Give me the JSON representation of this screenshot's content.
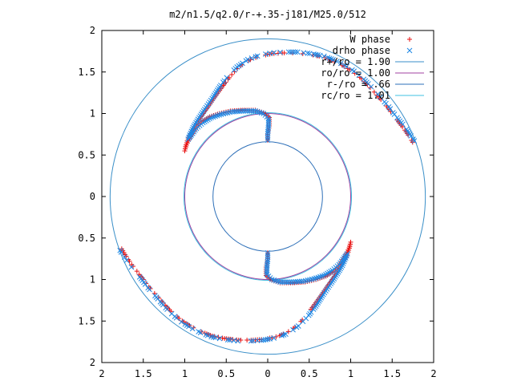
{
  "chart_data": {
    "type": "scatter",
    "title": "m2/n1.5/q2.0/r-+.35-j181/M25.0/512",
    "xlim": [
      -2,
      2
    ],
    "ylim": [
      -2,
      2
    ],
    "xticks": [
      {
        "value": -2,
        "label": "2"
      },
      {
        "value": -1.5,
        "label": "1.5"
      },
      {
        "value": -1,
        "label": "1"
      },
      {
        "value": -0.5,
        "label": "0.5"
      },
      {
        "value": 0,
        "label": "0"
      },
      {
        "value": 0.5,
        "label": "0.5"
      },
      {
        "value": 1,
        "label": "1"
      },
      {
        "value": 1.5,
        "label": "1.5"
      },
      {
        "value": 2,
        "label": "2"
      }
    ],
    "yticks": [
      {
        "value": 2,
        "label": "2"
      },
      {
        "value": 1.5,
        "label": "1.5"
      },
      {
        "value": 1,
        "label": "1"
      },
      {
        "value": 0.5,
        "label": "0.5"
      },
      {
        "value": 0,
        "label": "0"
      },
      {
        "value": -0.5,
        "label": "0.5"
      },
      {
        "value": -1,
        "label": "1"
      },
      {
        "value": -1.5,
        "label": "1.5"
      },
      {
        "value": -2,
        "label": "2"
      }
    ],
    "grid": false,
    "legend_position": "top-right",
    "circles": [
      {
        "name": "r+/ro = 1.90",
        "radius": 1.9,
        "color": "#3a8fc8"
      },
      {
        "name": "ro/ro = 1.00",
        "radius": 1.0,
        "color": "#a040a0"
      },
      {
        "name": "r-/ro = .66",
        "radius": 0.66,
        "color": "#2d6fb8"
      },
      {
        "name": "rc/ro = 1.01",
        "radius": 1.01,
        "color": "#40c0e0"
      }
    ],
    "series": [
      {
        "name": "W phase",
        "marker": "+",
        "color": "#e81010",
        "arm1": [
          [
            1.76,
            0.63
          ],
          [
            1.72,
            0.7
          ],
          [
            1.68,
            0.76
          ],
          [
            1.64,
            0.82
          ],
          [
            1.59,
            0.88
          ],
          [
            1.55,
            0.94
          ],
          [
            1.5,
            1.0
          ],
          [
            1.45,
            1.07
          ],
          [
            1.38,
            1.15
          ],
          [
            1.3,
            1.24
          ],
          [
            1.22,
            1.33
          ],
          [
            1.13,
            1.42
          ],
          [
            1.03,
            1.5
          ],
          [
            0.92,
            1.57
          ],
          [
            0.8,
            1.63
          ],
          [
            0.67,
            1.68
          ],
          [
            0.52,
            1.71
          ],
          [
            0.35,
            1.73
          ],
          [
            0.2,
            1.73
          ],
          [
            0.05,
            1.72
          ],
          [
            -0.1,
            1.69
          ],
          [
            -0.23,
            1.64
          ],
          [
            -0.35,
            1.56
          ],
          [
            -0.45,
            1.45
          ],
          [
            -0.55,
            1.32
          ],
          [
            -0.65,
            1.18
          ],
          [
            -0.75,
            1.04
          ],
          [
            -0.85,
            0.9
          ],
          [
            -0.92,
            0.78
          ],
          [
            -0.97,
            0.67
          ],
          [
            -0.99,
            0.6
          ],
          [
            -1.0,
            0.55
          ],
          [
            -0.98,
            0.62
          ],
          [
            -0.93,
            0.72
          ],
          [
            -0.87,
            0.82
          ],
          [
            -0.8,
            0.9
          ],
          [
            -0.7,
            0.96
          ],
          [
            -0.58,
            1.0
          ],
          [
            -0.45,
            1.03
          ],
          [
            -0.3,
            1.04
          ],
          [
            -0.15,
            1.04
          ],
          [
            -0.05,
            1.01
          ],
          [
            0.02,
            0.95
          ],
          [
            0.02,
            0.85
          ],
          [
            0.0,
            0.75
          ],
          [
            0.0,
            0.68
          ]
        ],
        "arm2": [
          [
            -1.76,
            -0.63
          ],
          [
            -1.72,
            -0.7
          ],
          [
            -1.68,
            -0.76
          ],
          [
            -1.64,
            -0.82
          ],
          [
            -1.59,
            -0.88
          ],
          [
            -1.55,
            -0.94
          ],
          [
            -1.5,
            -1.0
          ],
          [
            -1.45,
            -1.07
          ],
          [
            -1.38,
            -1.15
          ],
          [
            -1.3,
            -1.24
          ],
          [
            -1.22,
            -1.33
          ],
          [
            -1.13,
            -1.42
          ],
          [
            -1.03,
            -1.5
          ],
          [
            -0.92,
            -1.57
          ],
          [
            -0.8,
            -1.63
          ],
          [
            -0.67,
            -1.68
          ],
          [
            -0.52,
            -1.71
          ],
          [
            -0.35,
            -1.73
          ],
          [
            -0.2,
            -1.73
          ],
          [
            -0.05,
            -1.72
          ],
          [
            0.1,
            -1.69
          ],
          [
            0.23,
            -1.64
          ],
          [
            0.35,
            -1.56
          ],
          [
            0.45,
            -1.45
          ],
          [
            0.55,
            -1.32
          ],
          [
            0.65,
            -1.18
          ],
          [
            0.75,
            -1.04
          ],
          [
            0.85,
            -0.9
          ],
          [
            0.92,
            -0.78
          ],
          [
            0.97,
            -0.67
          ],
          [
            0.99,
            -0.6
          ],
          [
            1.0,
            -0.55
          ],
          [
            0.98,
            -0.62
          ],
          [
            0.93,
            -0.72
          ],
          [
            0.87,
            -0.82
          ],
          [
            0.8,
            -0.9
          ],
          [
            0.7,
            -0.96
          ],
          [
            0.58,
            -1.0
          ],
          [
            0.45,
            -1.03
          ],
          [
            0.3,
            -1.04
          ],
          [
            0.15,
            -1.04
          ],
          [
            0.05,
            -1.01
          ],
          [
            -0.02,
            -0.95
          ],
          [
            -0.02,
            -0.85
          ],
          [
            0.0,
            -0.75
          ],
          [
            0.0,
            -0.68
          ]
        ]
      },
      {
        "name": "drho phase",
        "marker": "x",
        "color": "#1e88e5",
        "arm1": [
          [
            1.78,
            0.65
          ],
          [
            1.74,
            0.71
          ],
          [
            1.7,
            0.77
          ],
          [
            1.66,
            0.83
          ],
          [
            1.61,
            0.89
          ],
          [
            1.56,
            0.95
          ],
          [
            1.51,
            1.01
          ],
          [
            1.46,
            1.08
          ],
          [
            1.39,
            1.16
          ],
          [
            1.31,
            1.25
          ],
          [
            1.23,
            1.34
          ],
          [
            1.14,
            1.43
          ],
          [
            1.04,
            1.51
          ],
          [
            0.93,
            1.58
          ],
          [
            0.81,
            1.64
          ],
          [
            0.68,
            1.69
          ],
          [
            0.53,
            1.72
          ],
          [
            0.36,
            1.74
          ],
          [
            0.2,
            1.74
          ],
          [
            0.05,
            1.73
          ],
          [
            -0.1,
            1.7
          ],
          [
            -0.24,
            1.65
          ],
          [
            -0.37,
            1.56
          ],
          [
            -0.48,
            1.45
          ],
          [
            -0.58,
            1.32
          ],
          [
            -0.67,
            1.18
          ],
          [
            -0.76,
            1.05
          ],
          [
            -0.84,
            0.93
          ],
          [
            -0.9,
            0.83
          ],
          [
            -0.94,
            0.74
          ],
          [
            -0.96,
            0.69
          ],
          [
            -0.92,
            0.74
          ],
          [
            -0.86,
            0.82
          ],
          [
            -0.78,
            0.89
          ],
          [
            -0.68,
            0.95
          ],
          [
            -0.56,
            0.99
          ],
          [
            -0.43,
            1.02
          ],
          [
            -0.29,
            1.03
          ],
          [
            -0.15,
            1.03
          ],
          [
            -0.05,
            1.0
          ],
          [
            0.01,
            0.94
          ],
          [
            0.01,
            0.85
          ],
          [
            0.0,
            0.76
          ],
          [
            0.0,
            0.68
          ]
        ],
        "arm2": [
          [
            -1.78,
            -0.65
          ],
          [
            -1.74,
            -0.71
          ],
          [
            -1.7,
            -0.77
          ],
          [
            -1.66,
            -0.83
          ],
          [
            -1.61,
            -0.89
          ],
          [
            -1.56,
            -0.95
          ],
          [
            -1.51,
            -1.01
          ],
          [
            -1.46,
            -1.08
          ],
          [
            -1.39,
            -1.16
          ],
          [
            -1.31,
            -1.25
          ],
          [
            -1.23,
            -1.34
          ],
          [
            -1.14,
            -1.43
          ],
          [
            -1.04,
            -1.51
          ],
          [
            -0.93,
            -1.58
          ],
          [
            -0.81,
            -1.64
          ],
          [
            -0.68,
            -1.69
          ],
          [
            -0.53,
            -1.72
          ],
          [
            -0.36,
            -1.74
          ],
          [
            -0.2,
            -1.74
          ],
          [
            -0.05,
            -1.73
          ],
          [
            0.1,
            -1.7
          ],
          [
            0.24,
            -1.65
          ],
          [
            0.37,
            -1.56
          ],
          [
            0.48,
            -1.45
          ],
          [
            0.58,
            -1.32
          ],
          [
            0.67,
            -1.18
          ],
          [
            0.76,
            -1.05
          ],
          [
            0.84,
            -0.93
          ],
          [
            0.9,
            -0.83
          ],
          [
            0.94,
            -0.74
          ],
          [
            0.96,
            -0.69
          ],
          [
            0.92,
            -0.74
          ],
          [
            0.86,
            -0.82
          ],
          [
            0.78,
            -0.89
          ],
          [
            0.68,
            -0.95
          ],
          [
            0.56,
            -0.99
          ],
          [
            0.43,
            -1.02
          ],
          [
            0.29,
            -1.03
          ],
          [
            0.15,
            -1.03
          ],
          [
            0.05,
            -1.0
          ],
          [
            -0.01,
            -0.94
          ],
          [
            -0.01,
            -0.85
          ],
          [
            0.0,
            -0.76
          ],
          [
            0.0,
            -0.68
          ]
        ]
      }
    ]
  }
}
